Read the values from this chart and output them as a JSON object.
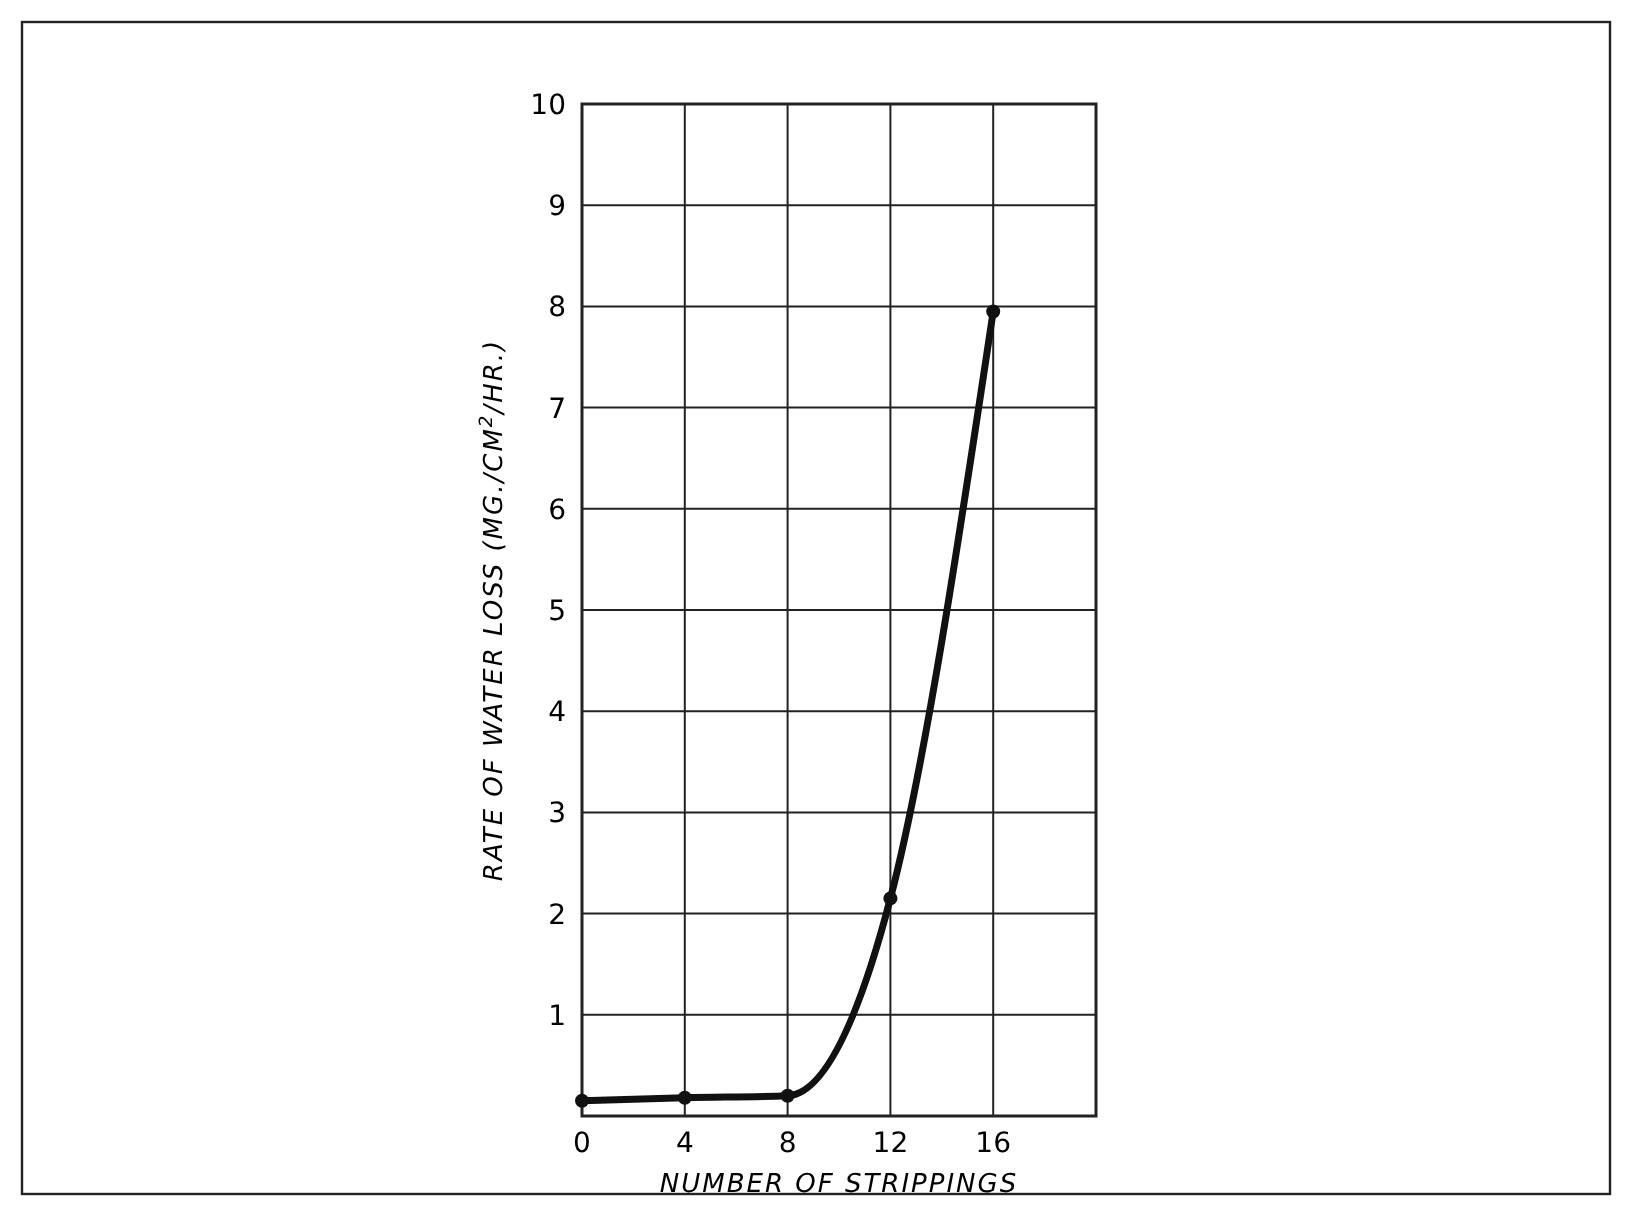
{
  "chart_data": {
    "type": "line",
    "xlabel": "NUMBER OF STRIPPINGS",
    "ylabel": "RATE OF WATER LOSS (MG./CM$^{2}$/HR.)",
    "x": [
      0,
      4,
      8,
      12,
      16
    ],
    "series": [
      {
        "color": "#111111",
        "values": [
          0.15,
          0.18,
          0.2,
          2.15,
          7.95
        ]
      }
    ],
    "xlim": [
      0,
      20
    ],
    "xticks": [
      0,
      4,
      8,
      12,
      16,
      {
        "value": 20,
        "label": null
      }
    ],
    "ylim": [
      0,
      10
    ],
    "yticks": [
      {
        "value": 0,
        "label": null
      },
      1,
      2,
      3,
      4,
      5,
      6,
      7,
      8,
      9,
      10
    ],
    "grid": true,
    "marker": "circle",
    "line_style": "solid"
  }
}
